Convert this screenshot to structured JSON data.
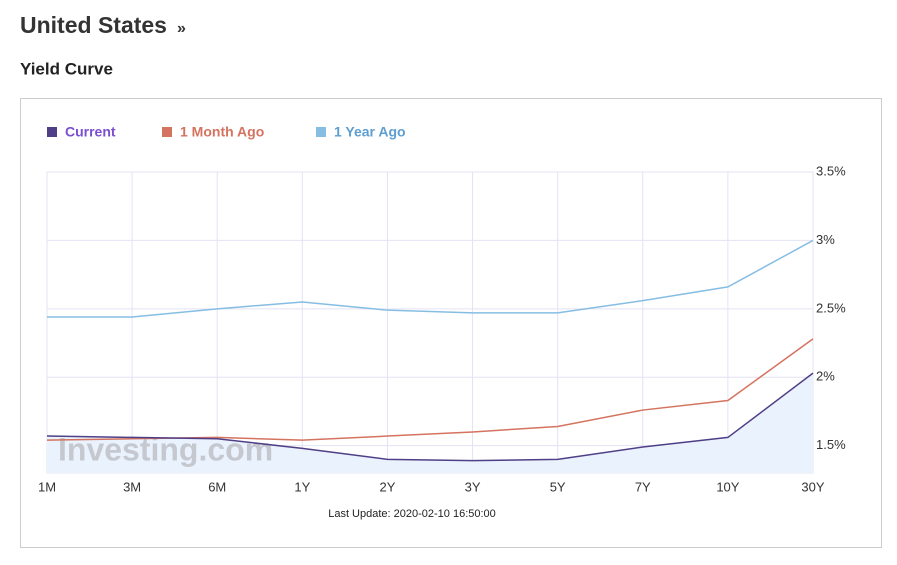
{
  "header": {
    "title": "United States",
    "title_suffix": "»",
    "subtitle": "Yield Curve"
  },
  "chart_data": {
    "type": "line",
    "categories": [
      "1M",
      "3M",
      "6M",
      "1Y",
      "2Y",
      "3Y",
      "5Y",
      "7Y",
      "10Y",
      "30Y"
    ],
    "series": [
      {
        "name": "Current",
        "color": "#4f3f86",
        "legend_color": "#7a4fd0",
        "fill": "#eaf2fd",
        "values": [
          1.57,
          1.56,
          1.55,
          1.48,
          1.4,
          1.39,
          1.4,
          1.49,
          1.56,
          2.03
        ]
      },
      {
        "name": "1 Month Ago",
        "color": "#d4735f",
        "legend_color": "#d4735f",
        "values": [
          1.54,
          1.55,
          1.56,
          1.54,
          1.57,
          1.6,
          1.64,
          1.76,
          1.83,
          2.28
        ]
      },
      {
        "name": "1 Year Ago",
        "color": "#86bde3",
        "legend_color": "#5e9ed0",
        "values": [
          2.44,
          2.44,
          2.5,
          2.55,
          2.49,
          2.47,
          2.47,
          2.56,
          2.66,
          3.0
        ]
      }
    ],
    "ylim": [
      1.3,
      3.5
    ],
    "yticks": [
      {
        "value": 1.5,
        "label": "1.5%"
      },
      {
        "value": 2,
        "label": "2%"
      },
      {
        "value": 2.5,
        "label": "2.5%"
      },
      {
        "value": 3,
        "label": "3%"
      },
      {
        "value": 3.5,
        "label": "3.5%"
      }
    ],
    "grid": true,
    "watermark": "Investing.com",
    "footer": "Last Update: 2020-02-10 16:50:00"
  }
}
